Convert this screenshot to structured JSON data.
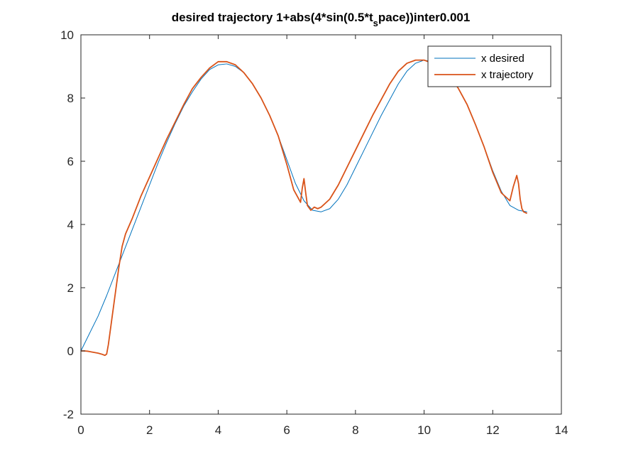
{
  "chart_data": {
    "type": "line",
    "title": "desired trajectory 1+abs(4*sin(0.5*t",
    "title_sub": "s",
    "title_end": "pace))inter0.001",
    "xlabel": "",
    "ylabel": "",
    "xlim": [
      0,
      14
    ],
    "ylim": [
      -2,
      10
    ],
    "xticks": [
      "0",
      "2",
      "4",
      "6",
      "8",
      "10",
      "12",
      "14"
    ],
    "yticks": [
      "-2",
      "0",
      "2",
      "4",
      "6",
      "8",
      "10"
    ],
    "grid": false,
    "legend_position": "top-right",
    "series": [
      {
        "name": "x desired",
        "color": "#0072BD",
        "x": [
          0,
          0.25,
          0.5,
          0.75,
          1.0,
          1.25,
          1.5,
          1.75,
          2.0,
          2.25,
          2.5,
          2.75,
          3.0,
          3.25,
          3.5,
          3.75,
          4.0,
          4.25,
          4.5,
          4.75,
          5.0,
          5.25,
          5.5,
          5.75,
          6.0,
          6.25,
          6.5,
          6.75,
          7.0,
          7.25,
          7.5,
          7.75,
          8.0,
          8.25,
          8.5,
          8.75,
          9.0,
          9.25,
          9.5,
          9.75,
          10.0,
          10.25,
          10.5,
          10.75,
          11.0,
          11.25,
          11.5,
          11.75,
          12.0,
          12.25,
          12.5,
          12.75,
          13.0
        ],
        "y": [
          0,
          0.55,
          1.1,
          1.75,
          2.45,
          3.15,
          3.85,
          4.55,
          5.25,
          5.95,
          6.6,
          7.2,
          7.75,
          8.2,
          8.6,
          8.9,
          9.05,
          9.08,
          9.0,
          8.8,
          8.45,
          8.0,
          7.45,
          6.8,
          6.05,
          5.3,
          4.75,
          4.45,
          4.4,
          4.5,
          4.8,
          5.25,
          5.8,
          6.35,
          6.9,
          7.45,
          7.95,
          8.45,
          8.85,
          9.1,
          9.2,
          9.15,
          9.0,
          8.7,
          8.3,
          7.8,
          7.15,
          6.45,
          5.7,
          5.05,
          4.6,
          4.45,
          4.4
        ]
      },
      {
        "name": "x trajectory",
        "color": "#D95319",
        "x": [
          0,
          0.1,
          0.2,
          0.3,
          0.4,
          0.5,
          0.6,
          0.7,
          0.75,
          0.8,
          0.9,
          1.0,
          1.1,
          1.2,
          1.3,
          1.5,
          1.75,
          2.0,
          2.25,
          2.5,
          2.75,
          3.0,
          3.25,
          3.5,
          3.75,
          4.0,
          4.25,
          4.5,
          4.75,
          5.0,
          5.25,
          5.5,
          5.75,
          6.0,
          6.2,
          6.4,
          6.45,
          6.5,
          6.55,
          6.6,
          6.7,
          6.8,
          6.9,
          7.0,
          7.25,
          7.5,
          7.75,
          8.0,
          8.25,
          8.5,
          8.75,
          9.0,
          9.25,
          9.5,
          9.75,
          10.0,
          10.25,
          10.5,
          10.75,
          11.0,
          11.25,
          11.5,
          11.75,
          12.0,
          12.25,
          12.5,
          12.6,
          12.7,
          12.75,
          12.8,
          12.85,
          12.9,
          13.0
        ],
        "y": [
          0,
          0.0,
          -0.01,
          -0.03,
          -0.05,
          -0.07,
          -0.1,
          -0.14,
          -0.1,
          0.2,
          1.0,
          1.8,
          2.6,
          3.3,
          3.7,
          4.2,
          4.9,
          5.5,
          6.1,
          6.7,
          7.25,
          7.8,
          8.3,
          8.65,
          8.95,
          9.15,
          9.15,
          9.05,
          8.8,
          8.45,
          8.0,
          7.45,
          6.8,
          5.9,
          5.1,
          4.7,
          5.15,
          5.45,
          5.0,
          4.6,
          4.45,
          4.55,
          4.5,
          4.55,
          4.8,
          5.25,
          5.8,
          6.35,
          6.9,
          7.45,
          7.95,
          8.45,
          8.85,
          9.1,
          9.2,
          9.2,
          9.1,
          8.95,
          8.7,
          8.3,
          7.8,
          7.15,
          6.45,
          5.65,
          5.0,
          4.75,
          5.2,
          5.55,
          5.3,
          4.8,
          4.5,
          4.4,
          4.35
        ]
      }
    ]
  }
}
